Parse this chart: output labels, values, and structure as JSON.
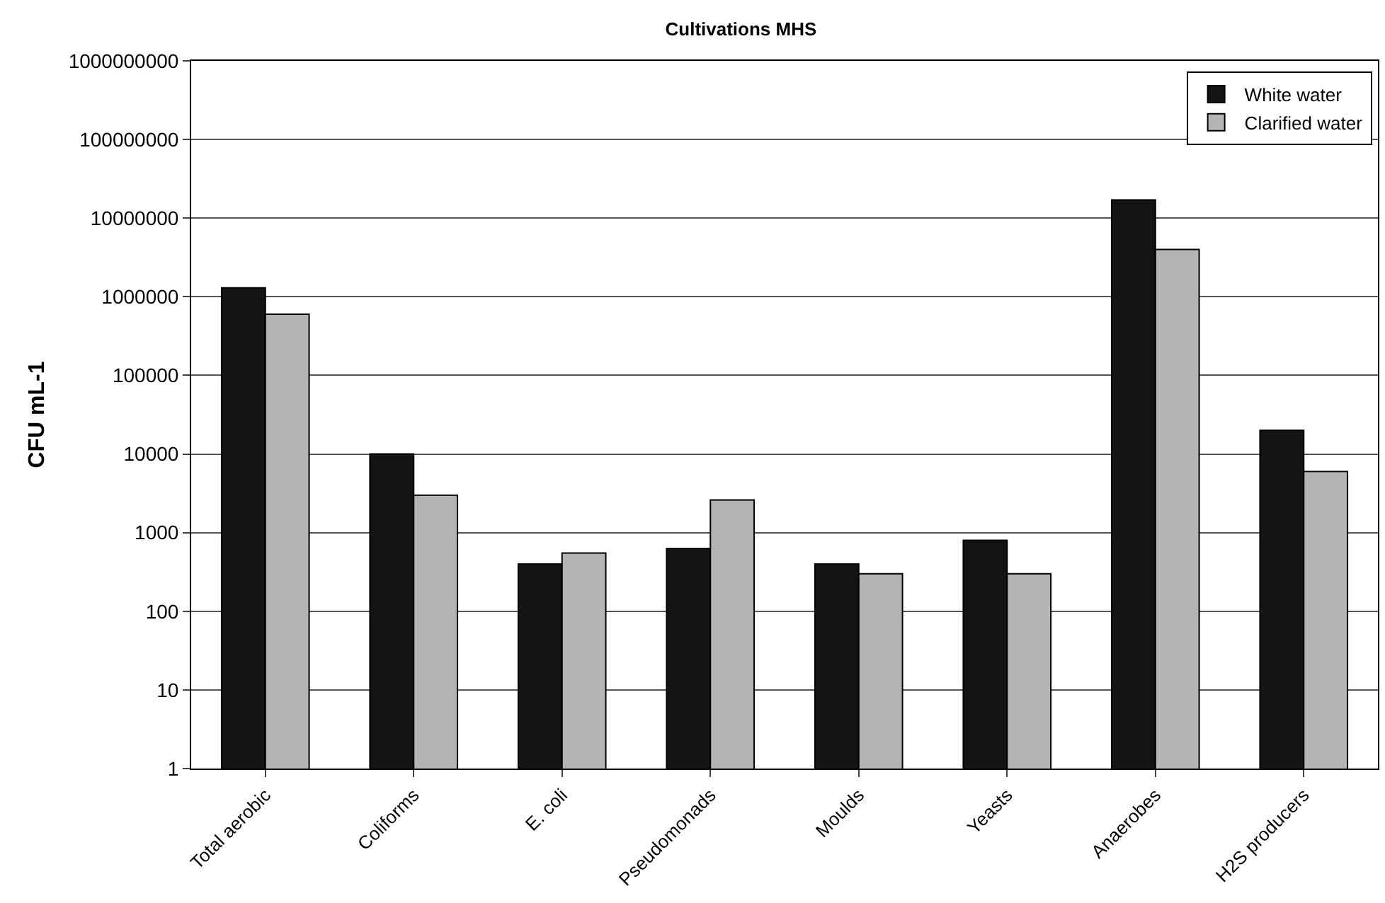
{
  "chart_data": {
    "type": "bar",
    "title": "Cultivations MHS",
    "ylabel": "CFU mL-1",
    "categories": [
      "Total aerobic",
      "Coliforms",
      "E. coli",
      "Pseudomonads",
      "Moulds",
      "Yeasts",
      "Anaerobes",
      "H2S producers"
    ],
    "series": [
      {
        "name": "White water",
        "color": "#141414",
        "values": [
          1300000,
          10000,
          400,
          630,
          400,
          800,
          17000000,
          20000
        ]
      },
      {
        "name": "Clarified water",
        "color": "#b4b4b4",
        "values": [
          600000,
          3000,
          550,
          2600,
          300,
          300,
          4000000,
          6000
        ]
      }
    ],
    "log": "y",
    "ylim": [
      1,
      1000000000
    ],
    "yticks": [
      1,
      10,
      100,
      1000,
      10000,
      100000,
      1000000,
      10000000,
      100000000,
      1000000000
    ],
    "grid": "y",
    "legend": "top right"
  }
}
